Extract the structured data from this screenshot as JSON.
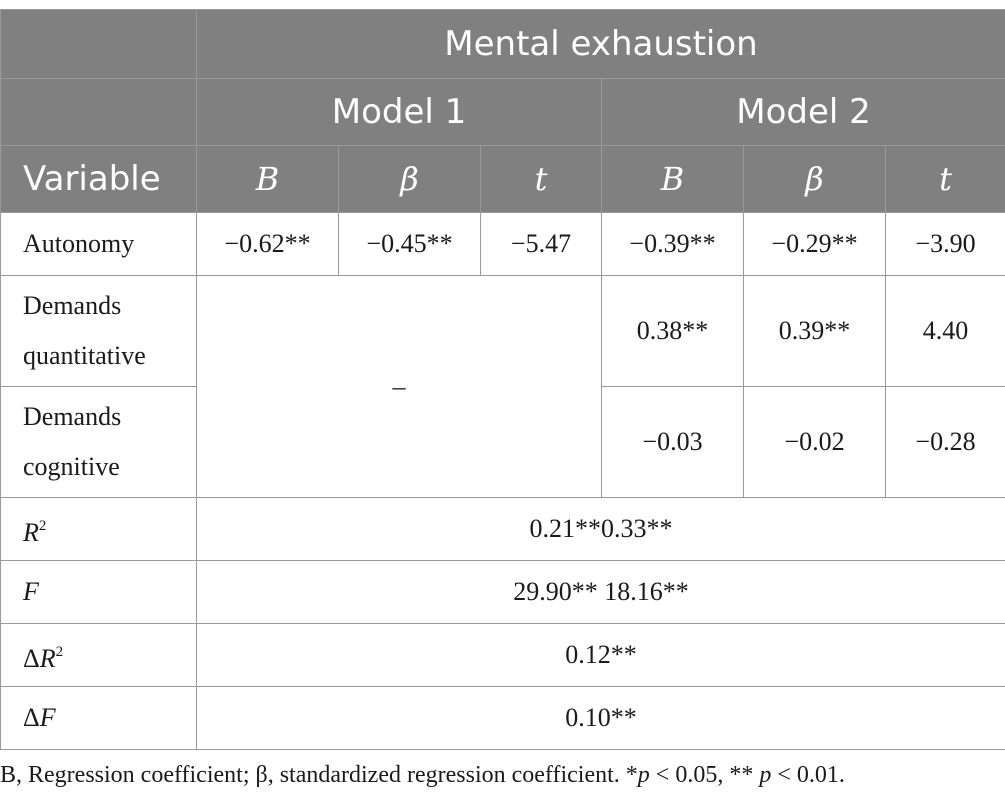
{
  "header": {
    "group": "Mental exhaustion",
    "model1": "Model 1",
    "model2": "Model 2",
    "variable": "Variable",
    "col_B": "B",
    "col_beta": "β",
    "col_t": "t"
  },
  "rows": {
    "autonomy": {
      "label": "Autonomy",
      "m1": [
        "−0.62**",
        "−0.45**",
        "−5.47"
      ],
      "m2": [
        "−0.39**",
        "−0.29**",
        "−3.90"
      ]
    },
    "demands_quantitative": {
      "label_line1": "Demands",
      "label_line2": "quantitative",
      "m1_merged": "–",
      "m2": [
        "0.38**",
        "0.39**",
        "4.40"
      ]
    },
    "demands_cognitive": {
      "label_line1": "Demands",
      "label_line2": "cognitive",
      "m2": [
        "−0.03",
        "−0.02",
        "−0.28"
      ]
    },
    "r2": {
      "label": "R",
      "sup": "2",
      "value": "0.21**0.33**"
    },
    "f": {
      "label": "F",
      "value": "29.90** 18.16**"
    },
    "delta_r2": {
      "delta": "Δ",
      "label": "R",
      "sup": "2",
      "value": "0.12**"
    },
    "delta_f": {
      "delta": "Δ",
      "label": "F",
      "value": "0.10**"
    }
  },
  "note": {
    "part1": "B, Regression coefficient; β, standardized regression coefficient. *",
    "p1": "p",
    "part2": " < 0.05, ** ",
    "p2": "p",
    "part3": " < 0.01."
  }
}
